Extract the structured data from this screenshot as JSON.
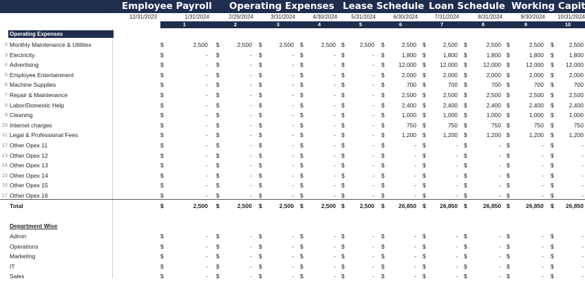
{
  "nav_tabs": [
    "Employee Payroll",
    "Operating Expenses",
    "Lease Schedule",
    "Loan Schedule",
    "Working Capital"
  ],
  "dates": [
    "12/31/2023",
    "1/31/2024",
    "2/29/2024",
    "3/31/2024",
    "4/30/2024",
    "5/31/2024",
    "6/30/2024",
    "7/31/2024",
    "8/31/2024",
    "9/30/2024",
    "10/31/2024"
  ],
  "period_numbers": [
    "1",
    "2",
    "3",
    "4",
    "5",
    "6",
    "7",
    "8",
    "9",
    "10"
  ],
  "section_header": "Operating Expenses",
  "expense_rows": [
    {
      "num": "2",
      "label": "Monthly Maintenance & Utilities",
      "values": [
        "2,500",
        "2,500",
        "2,500",
        "2,500",
        "2,500",
        "2,500",
        "2,500",
        "2,500",
        "2,500",
        "2,500"
      ]
    },
    {
      "num": "3",
      "label": "Electricity",
      "values": [
        "-",
        "-",
        "-",
        "-",
        "-",
        "1,800",
        "1,800",
        "1,800",
        "1,800",
        "1,800"
      ]
    },
    {
      "num": "4",
      "label": "Advertising",
      "values": [
        "-",
        "-",
        "-",
        "-",
        "-",
        "12,000",
        "12,000",
        "12,000",
        "12,000",
        "12,000"
      ]
    },
    {
      "num": "5",
      "label": "Employee Entertainment",
      "values": [
        "-",
        "-",
        "-",
        "-",
        "-",
        "2,000",
        "2,000",
        "2,000",
        "2,000",
        "2,000"
      ]
    },
    {
      "num": "6",
      "label": "Machine Supplies",
      "values": [
        "-",
        "-",
        "-",
        "-",
        "-",
        "700",
        "700",
        "700",
        "700",
        "700"
      ]
    },
    {
      "num": "7",
      "label": "Repair & Maintenance",
      "values": [
        "-",
        "-",
        "-",
        "-",
        "-",
        "2,500",
        "2,500",
        "2,500",
        "2,500",
        "2,500"
      ]
    },
    {
      "num": "8",
      "label": "Labor/Domestic Help",
      "values": [
        "-",
        "-",
        "-",
        "-",
        "-",
        "2,400",
        "2,400",
        "2,400",
        "2,400",
        "2,400"
      ]
    },
    {
      "num": "9",
      "label": "Cleaning",
      "values": [
        "-",
        "-",
        "-",
        "-",
        "-",
        "1,000",
        "1,000",
        "1,000",
        "1,000",
        "1,000"
      ]
    },
    {
      "num": "10",
      "label": "Internet charges",
      "values": [
        "-",
        "-",
        "-",
        "-",
        "-",
        "750",
        "750",
        "750",
        "750",
        "750"
      ]
    },
    {
      "num": "11",
      "label": "Legal & Professional Fees",
      "values": [
        "-",
        "-",
        "-",
        "-",
        "-",
        "1,200",
        "1,200",
        "1,200",
        "1,200",
        "1,200"
      ]
    },
    {
      "num": "12",
      "label": "Other Opex 11",
      "values": [
        "-",
        "-",
        "-",
        "-",
        "-",
        "-",
        "-",
        "-",
        "-",
        "-"
      ]
    },
    {
      "num": "13",
      "label": "Other Opex 12",
      "values": [
        "-",
        "-",
        "-",
        "-",
        "-",
        "-",
        "-",
        "-",
        "-",
        "-"
      ]
    },
    {
      "num": "14",
      "label": "Other Opex 13",
      "values": [
        "-",
        "-",
        "-",
        "-",
        "-",
        "-",
        "-",
        "-",
        "-",
        "-"
      ]
    },
    {
      "num": "15",
      "label": "Other Opex 14",
      "values": [
        "-",
        "-",
        "-",
        "-",
        "-",
        "-",
        "-",
        "-",
        "-",
        "-"
      ]
    },
    {
      "num": "16",
      "label": "Other Opex 15",
      "values": [
        "-",
        "-",
        "-",
        "-",
        "-",
        "-",
        "-",
        "-",
        "-",
        "-"
      ]
    },
    {
      "num": "17",
      "label": "Other Opex 16",
      "values": [
        "-",
        "-",
        "-",
        "-",
        "-",
        "-",
        "-",
        "-",
        "-",
        "-"
      ]
    }
  ],
  "total_row": {
    "label": "Total",
    "values": [
      "2,500",
      "2,500",
      "2,500",
      "2,500",
      "2,500",
      "26,850",
      "26,850",
      "26,850",
      "26,850",
      "26,850"
    ]
  },
  "dept_header": "Department Wise",
  "dept_rows": [
    {
      "label": "Admin",
      "values": [
        "-",
        "-",
        "-",
        "-",
        "-",
        "-",
        "-",
        "-",
        "-",
        "-"
      ]
    },
    {
      "label": "Operations",
      "values": [
        "-",
        "-",
        "-",
        "-",
        "-",
        "-",
        "-",
        "-",
        "-",
        "-"
      ]
    },
    {
      "label": "Marketing",
      "values": [
        "-",
        "-",
        "-",
        "-",
        "-",
        "-",
        "-",
        "-",
        "-",
        "-"
      ]
    },
    {
      "label": "IT",
      "values": [
        "-",
        "-",
        "-",
        "-",
        "-",
        "-",
        "-",
        "-",
        "-",
        "-"
      ]
    },
    {
      "label": "Sales",
      "values": [
        "-",
        "-",
        "-",
        "-",
        "-",
        "-",
        "-",
        "-",
        "-",
        "-"
      ]
    }
  ],
  "currency_symbol": "$",
  "colors": {
    "header_navy": "#1f2d4f"
  }
}
